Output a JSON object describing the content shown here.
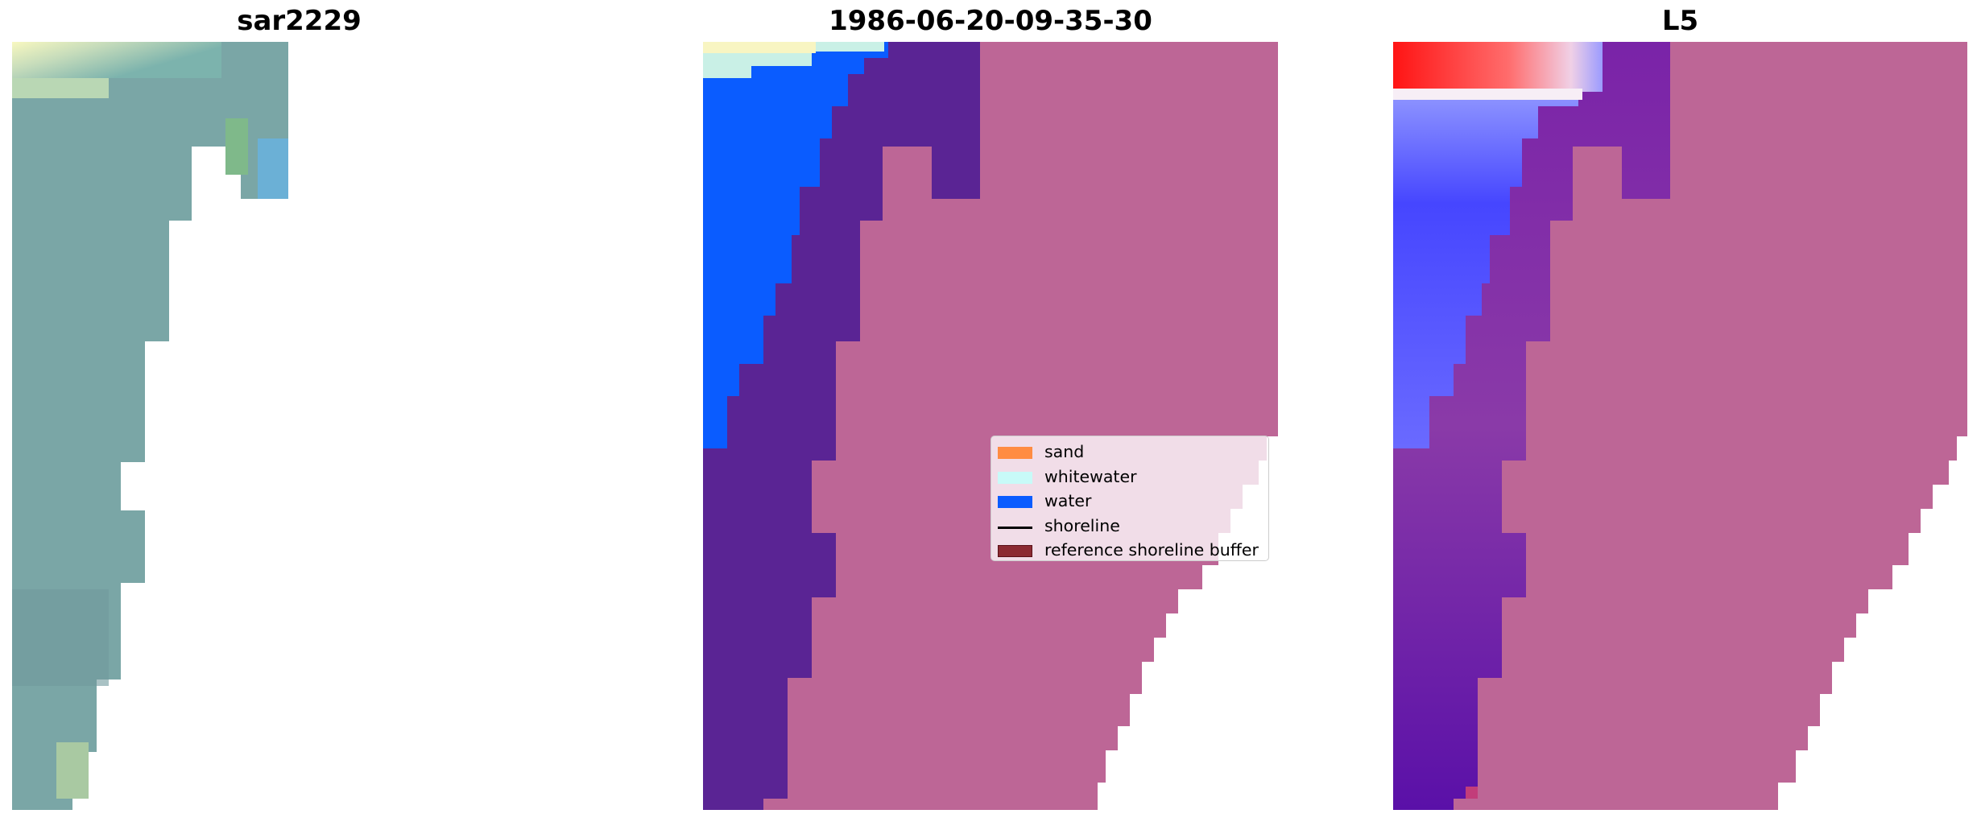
{
  "panels": [
    {
      "title": "sar2229",
      "kind": "rgb"
    },
    {
      "title": "1986-06-20-09-35-30",
      "kind": "classification"
    },
    {
      "title": "L5",
      "kind": "index"
    }
  ],
  "legend": {
    "items": [
      {
        "label": "sand",
        "type": "patch",
        "color": "#ff8c42"
      },
      {
        "label": "whitewater",
        "type": "patch",
        "color": "#c8faf8"
      },
      {
        "label": "water",
        "type": "patch",
        "color": "#0a5cff"
      },
      {
        "label": "shoreline",
        "type": "line",
        "color": "#000000"
      },
      {
        "label": "reference shoreline buffer",
        "type": "patch",
        "color": "#8b1f2a"
      }
    ]
  },
  "colors": {
    "land": "#bd6696",
    "water": "#0a5cff",
    "buffer": "#5a2494",
    "whitewater": "#c8f5e8",
    "sand_tone": "#f7f5c0",
    "rgb_sea": "#7aa8a8",
    "index_red": "#ff1f1f",
    "index_blue": "#4d4dff"
  }
}
